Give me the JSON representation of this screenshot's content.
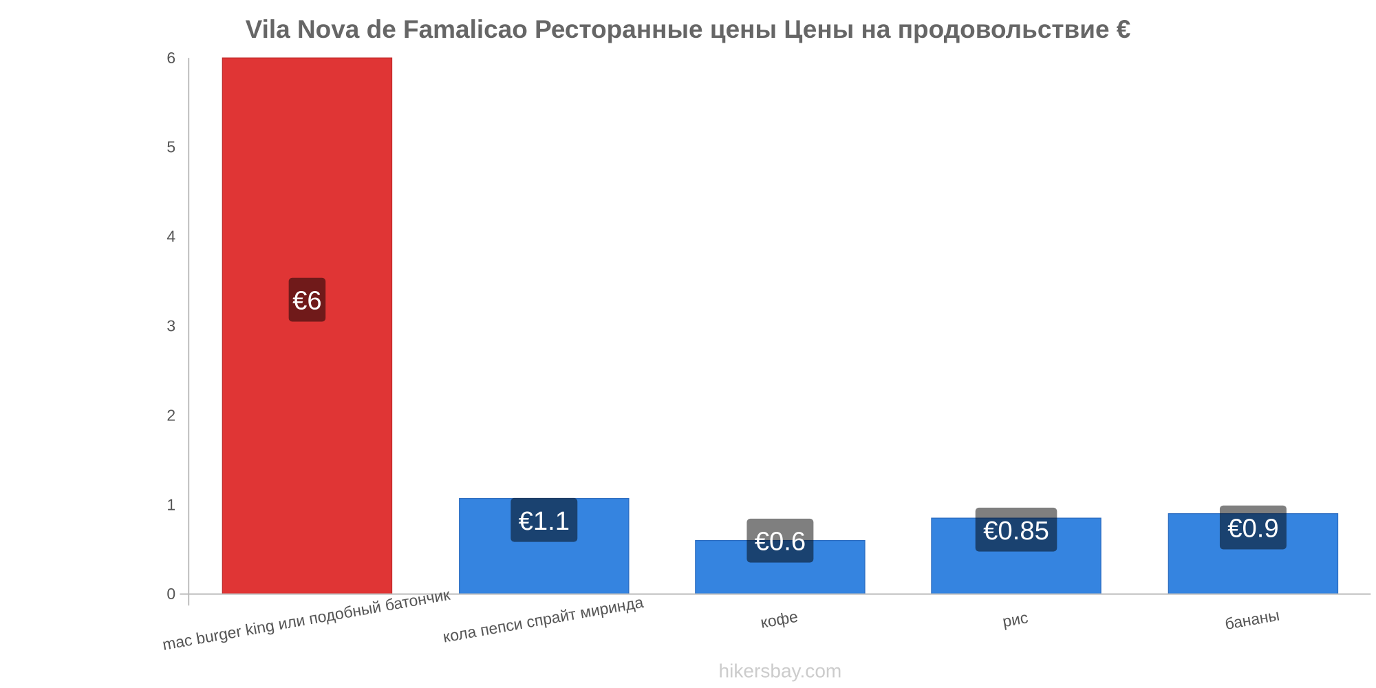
{
  "chart_data": {
    "type": "bar",
    "title": "Vila Nova de Famalicao Ресторанные цены Цены на продовольствие €",
    "categories": [
      "mac burger king или подобный батончик",
      "кола пепси спрайт миринда",
      "кофе",
      "рис",
      "бананы"
    ],
    "values": [
      6,
      1.07,
      0.6,
      0.85,
      0.9
    ],
    "value_labels": [
      "€6",
      "€1.1",
      "€0.6",
      "€0.85",
      "€0.9"
    ],
    "colors": [
      "#e03535",
      "#3584e0",
      "#3584e0",
      "#3584e0",
      "#3584e0"
    ],
    "xlabel": "",
    "ylabel": "",
    "ylim": [
      0,
      6
    ],
    "yticks": [
      "0",
      "1",
      "2",
      "3",
      "4",
      "5",
      "6"
    ],
    "grid": false,
    "legend": "none"
  },
  "watermark": "hikersbay.com"
}
